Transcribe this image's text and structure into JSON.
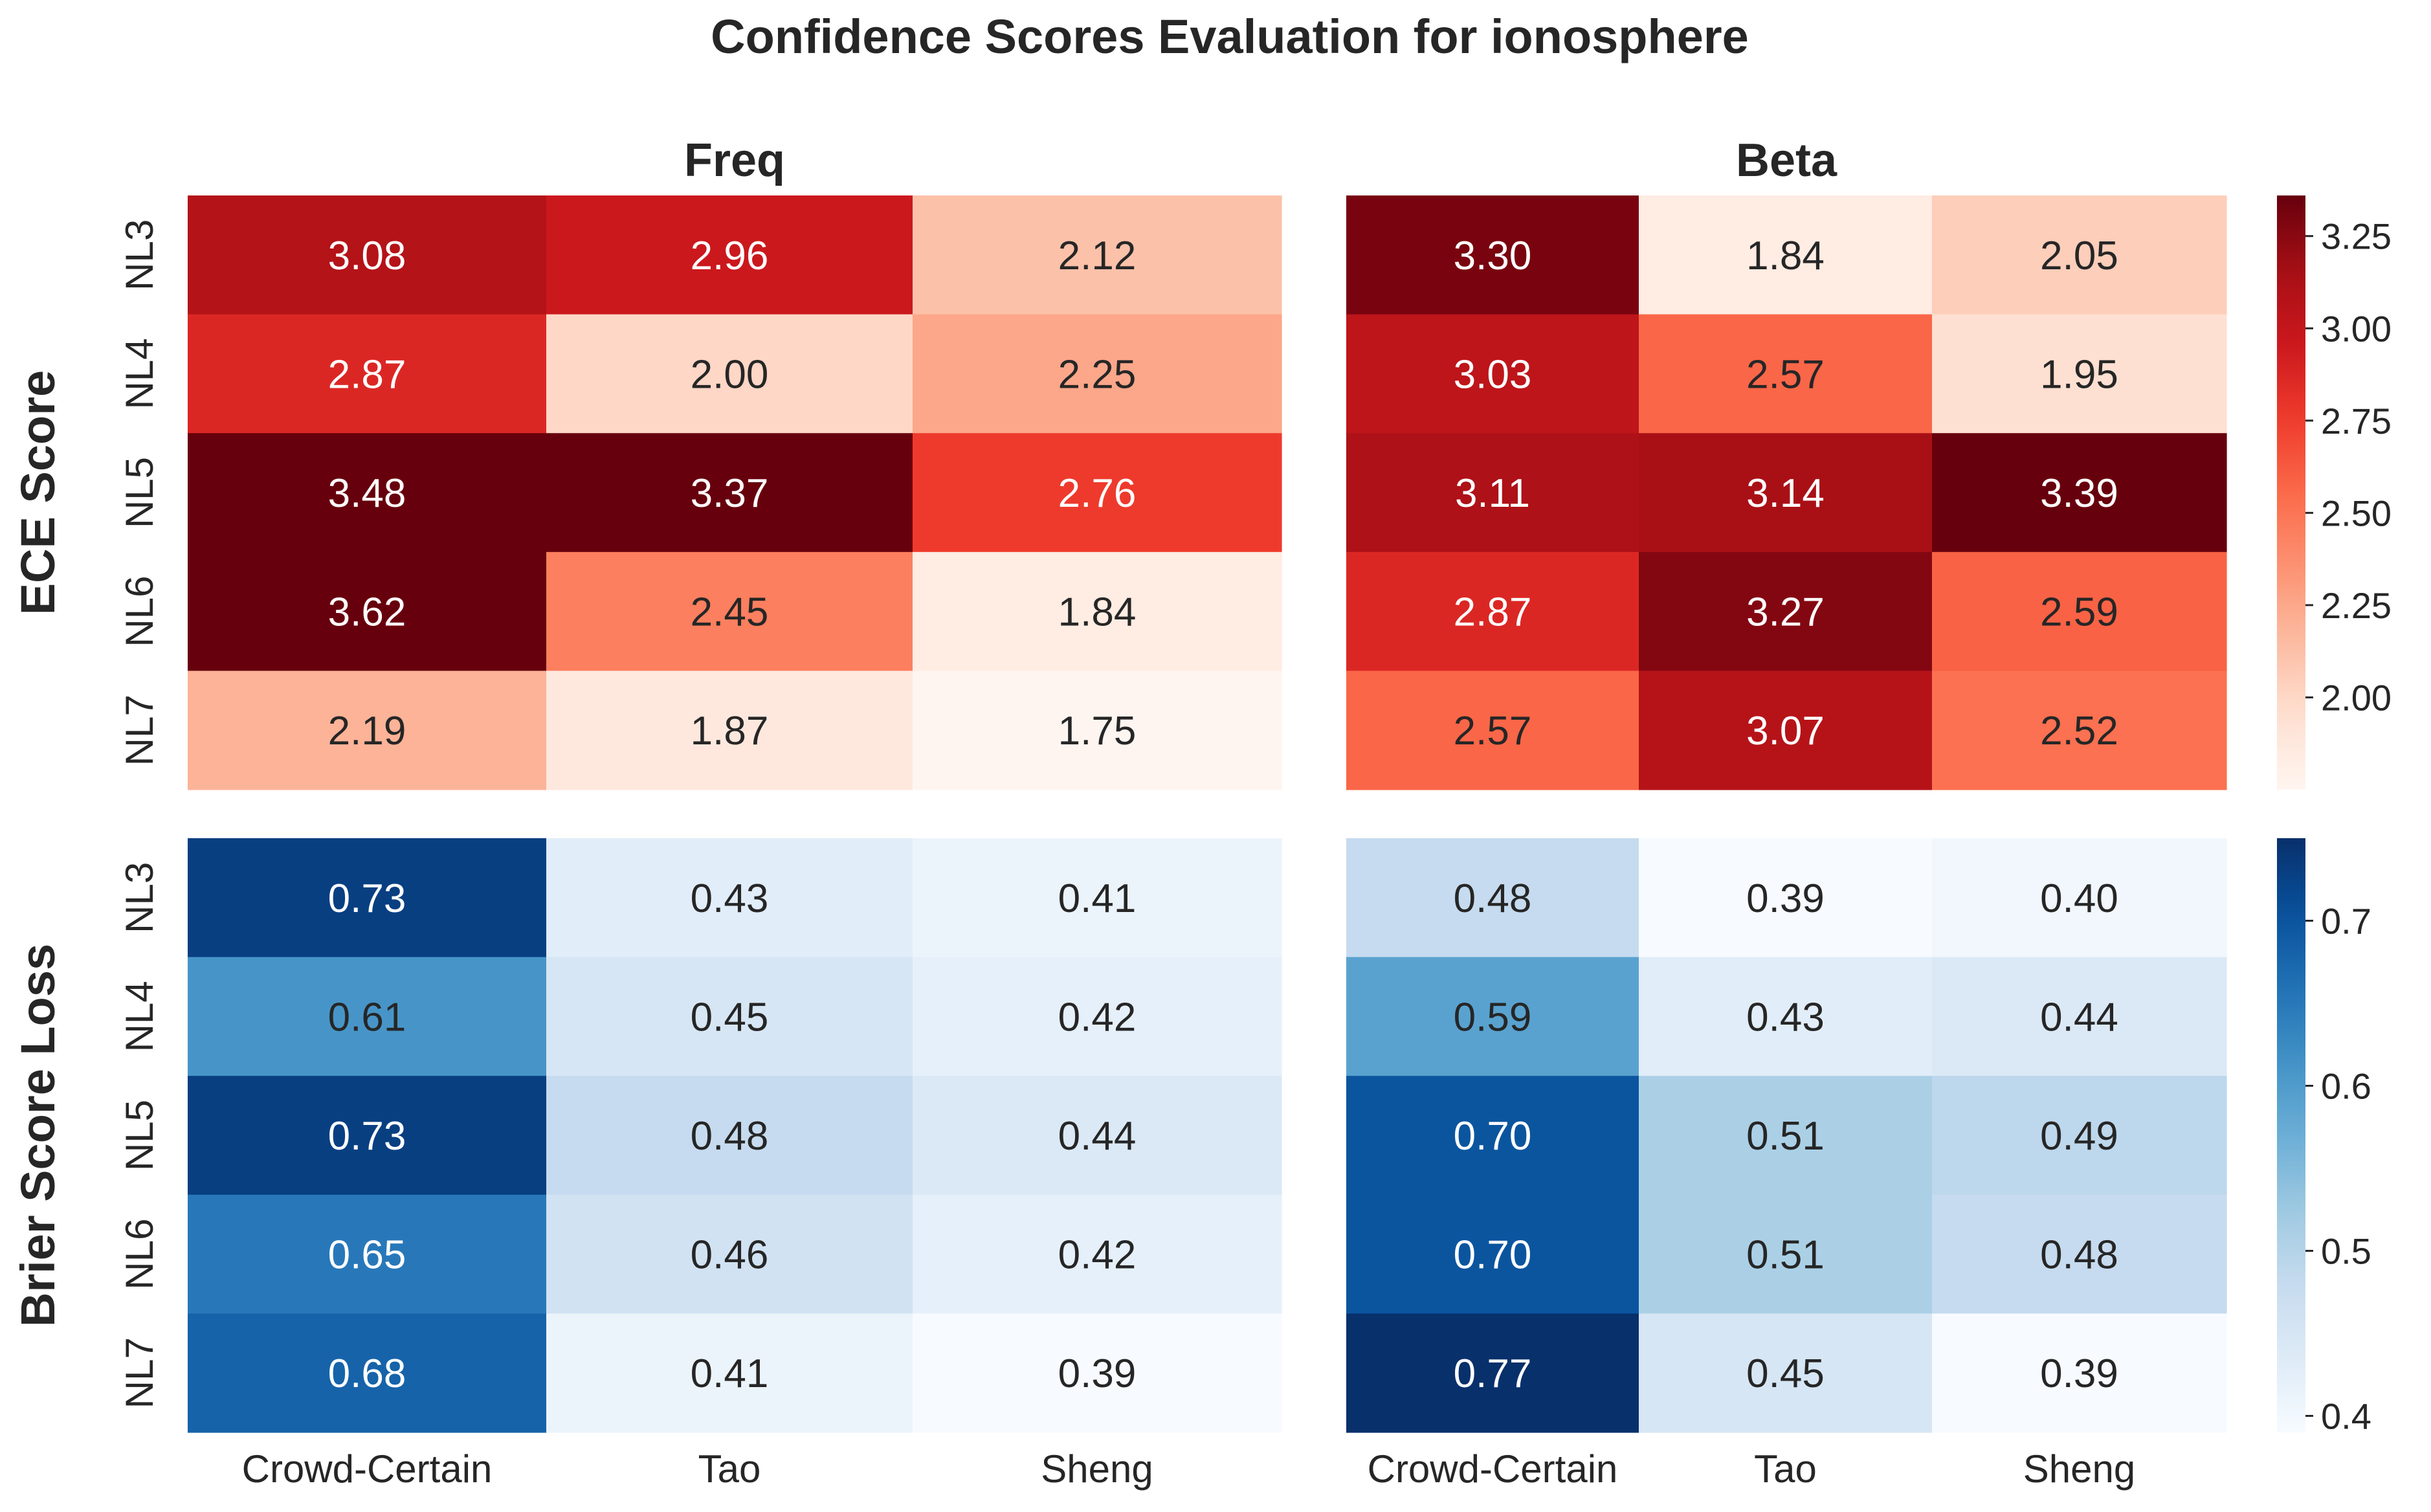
{
  "title": "Confidence Scores Evaluation for ionosphere",
  "chart_data": {
    "type": "heatmap",
    "columns": [
      "Crowd-Certain",
      "Tao",
      "Sheng"
    ],
    "rows": [
      "NL3",
      "NL4",
      "NL5",
      "NL6",
      "NL7"
    ],
    "panel_titles": [
      "Freq",
      "Beta"
    ],
    "row_titles": [
      "ECE Score",
      "Brier Score Loss"
    ],
    "ece": {
      "colormap": "Reds",
      "vmin": 1.75,
      "vmax": 3.36,
      "colorbar_ticks": [
        "2.00",
        "2.25",
        "2.50",
        "2.75",
        "3.00",
        "3.25"
      ],
      "freq": [
        [
          3.08,
          2.96,
          2.12
        ],
        [
          2.87,
          2.0,
          2.25
        ],
        [
          3.48,
          3.37,
          2.76
        ],
        [
          3.62,
          2.45,
          1.84
        ],
        [
          2.19,
          1.87,
          1.75
        ]
      ],
      "beta": [
        [
          3.3,
          1.84,
          2.05
        ],
        [
          3.03,
          2.57,
          1.95
        ],
        [
          3.11,
          3.14,
          3.39
        ],
        [
          2.87,
          3.27,
          2.59
        ],
        [
          2.57,
          3.07,
          2.52
        ]
      ]
    },
    "brier": {
      "colormap": "Blues",
      "vmin": 0.39,
      "vmax": 0.75,
      "colorbar_ticks": [
        "0.4",
        "0.5",
        "0.6",
        "0.7"
      ],
      "freq": [
        [
          0.73,
          0.43,
          0.41
        ],
        [
          0.61,
          0.45,
          0.42
        ],
        [
          0.73,
          0.48,
          0.44
        ],
        [
          0.65,
          0.46,
          0.42
        ],
        [
          0.68,
          0.41,
          0.39
        ]
      ],
      "beta": [
        [
          0.48,
          0.39,
          0.4
        ],
        [
          0.59,
          0.43,
          0.44
        ],
        [
          0.7,
          0.51,
          0.49
        ],
        [
          0.7,
          0.51,
          0.48
        ],
        [
          0.77,
          0.45,
          0.39
        ]
      ]
    }
  }
}
